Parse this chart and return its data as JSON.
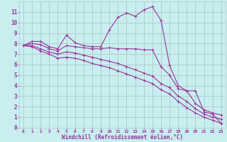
{
  "xlabel": "Windchill (Refroidissement éolien,°C)",
  "background_color": "#c8eef0",
  "line_color": "#993399",
  "grid_color": "#b0c8c8",
  "xlim": [
    -0.5,
    23.5
  ],
  "ylim": [
    0,
    12
  ],
  "yticks": [
    0,
    1,
    2,
    3,
    4,
    5,
    6,
    7,
    8,
    9,
    10,
    11
  ],
  "xticks": [
    0,
    1,
    2,
    3,
    4,
    5,
    6,
    7,
    8,
    9,
    10,
    11,
    12,
    13,
    14,
    15,
    16,
    17,
    18,
    19,
    20,
    21,
    22,
    23
  ],
  "series": [
    [
      7.8,
      8.2,
      8.2,
      7.7,
      7.5,
      8.8,
      8.1,
      7.8,
      7.7,
      7.7,
      9.3,
      10.5,
      10.9,
      10.6,
      11.2,
      11.5,
      10.2,
      5.9,
      4.0,
      3.5,
      3.5,
      1.5,
      1.3,
      0.4
    ],
    [
      7.8,
      8.0,
      7.9,
      7.5,
      7.3,
      7.8,
      7.7,
      7.6,
      7.5,
      7.5,
      7.6,
      7.5,
      7.5,
      7.5,
      7.4,
      7.4,
      5.8,
      5.0,
      3.7,
      3.5,
      2.3,
      1.7,
      1.4,
      1.2
    ],
    [
      7.8,
      7.8,
      7.5,
      7.2,
      7.0,
      7.2,
      7.1,
      6.9,
      6.7,
      6.5,
      6.3,
      6.1,
      5.8,
      5.5,
      5.2,
      4.9,
      4.2,
      3.8,
      3.0,
      2.5,
      1.8,
      1.3,
      1.0,
      0.8
    ],
    [
      7.8,
      7.7,
      7.3,
      7.0,
      6.6,
      6.7,
      6.6,
      6.4,
      6.1,
      5.9,
      5.7,
      5.4,
      5.1,
      4.8,
      4.5,
      4.2,
      3.6,
      3.2,
      2.5,
      1.9,
      1.4,
      1.0,
      0.7,
      0.4
    ]
  ]
}
